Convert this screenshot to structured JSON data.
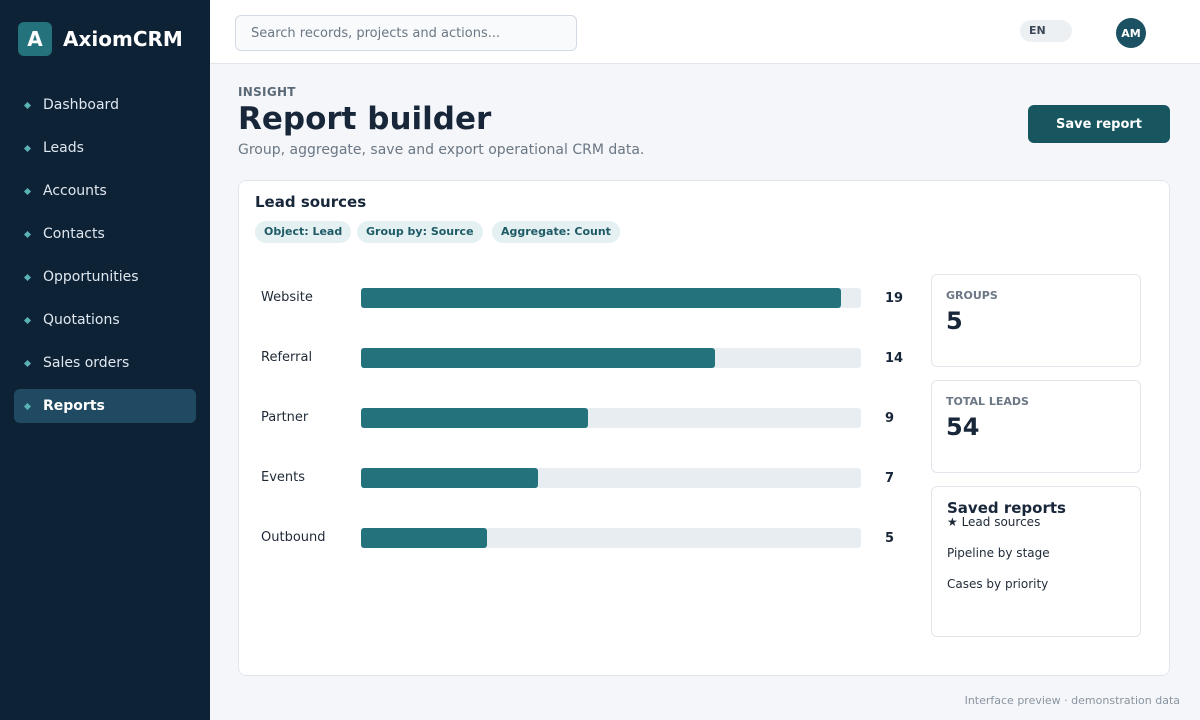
{
  "brand": {
    "logo_letter": "A",
    "name": "AxiomCRM"
  },
  "sidebar": {
    "items": [
      {
        "label": "Dashboard",
        "active": false
      },
      {
        "label": "Leads",
        "active": false
      },
      {
        "label": "Accounts",
        "active": false
      },
      {
        "label": "Contacts",
        "active": false
      },
      {
        "label": "Opportunities",
        "active": false
      },
      {
        "label": "Quotations",
        "active": false
      },
      {
        "label": "Sales orders",
        "active": false
      },
      {
        "label": "Reports",
        "active": true
      }
    ]
  },
  "topbar": {
    "search_placeholder": "Search records, projects and actions...",
    "language": "EN",
    "avatar_initials": "AM"
  },
  "header": {
    "eyebrow": "INSIGHT",
    "title": "Report builder",
    "subtitle": "Group, aggregate, save and export operational CRM data.",
    "save_label": "Save report"
  },
  "report": {
    "title": "Lead sources",
    "chips": [
      "Object: Lead",
      "Group by: Source",
      "Aggregate: Count"
    ],
    "bars": [
      {
        "label": "Website",
        "value": 19
      },
      {
        "label": "Referral",
        "value": 14
      },
      {
        "label": "Partner",
        "value": 9
      },
      {
        "label": "Events",
        "value": 7
      },
      {
        "label": "Outbound",
        "value": 5
      }
    ],
    "bar_max": 19.8
  },
  "stats": {
    "groups_label": "GROUPS",
    "groups_value": "5",
    "total_label": "TOTAL LEADS",
    "total_value": "54"
  },
  "saved_reports": {
    "title": "Saved reports",
    "items": [
      "★ Lead sources",
      "Pipeline by stage",
      "Cases by priority"
    ]
  },
  "footer_note": "Interface preview · demonstration data",
  "colors": {
    "sidebar_bg": "#0e2236",
    "accent": "#23727c",
    "button": "#17565f"
  }
}
